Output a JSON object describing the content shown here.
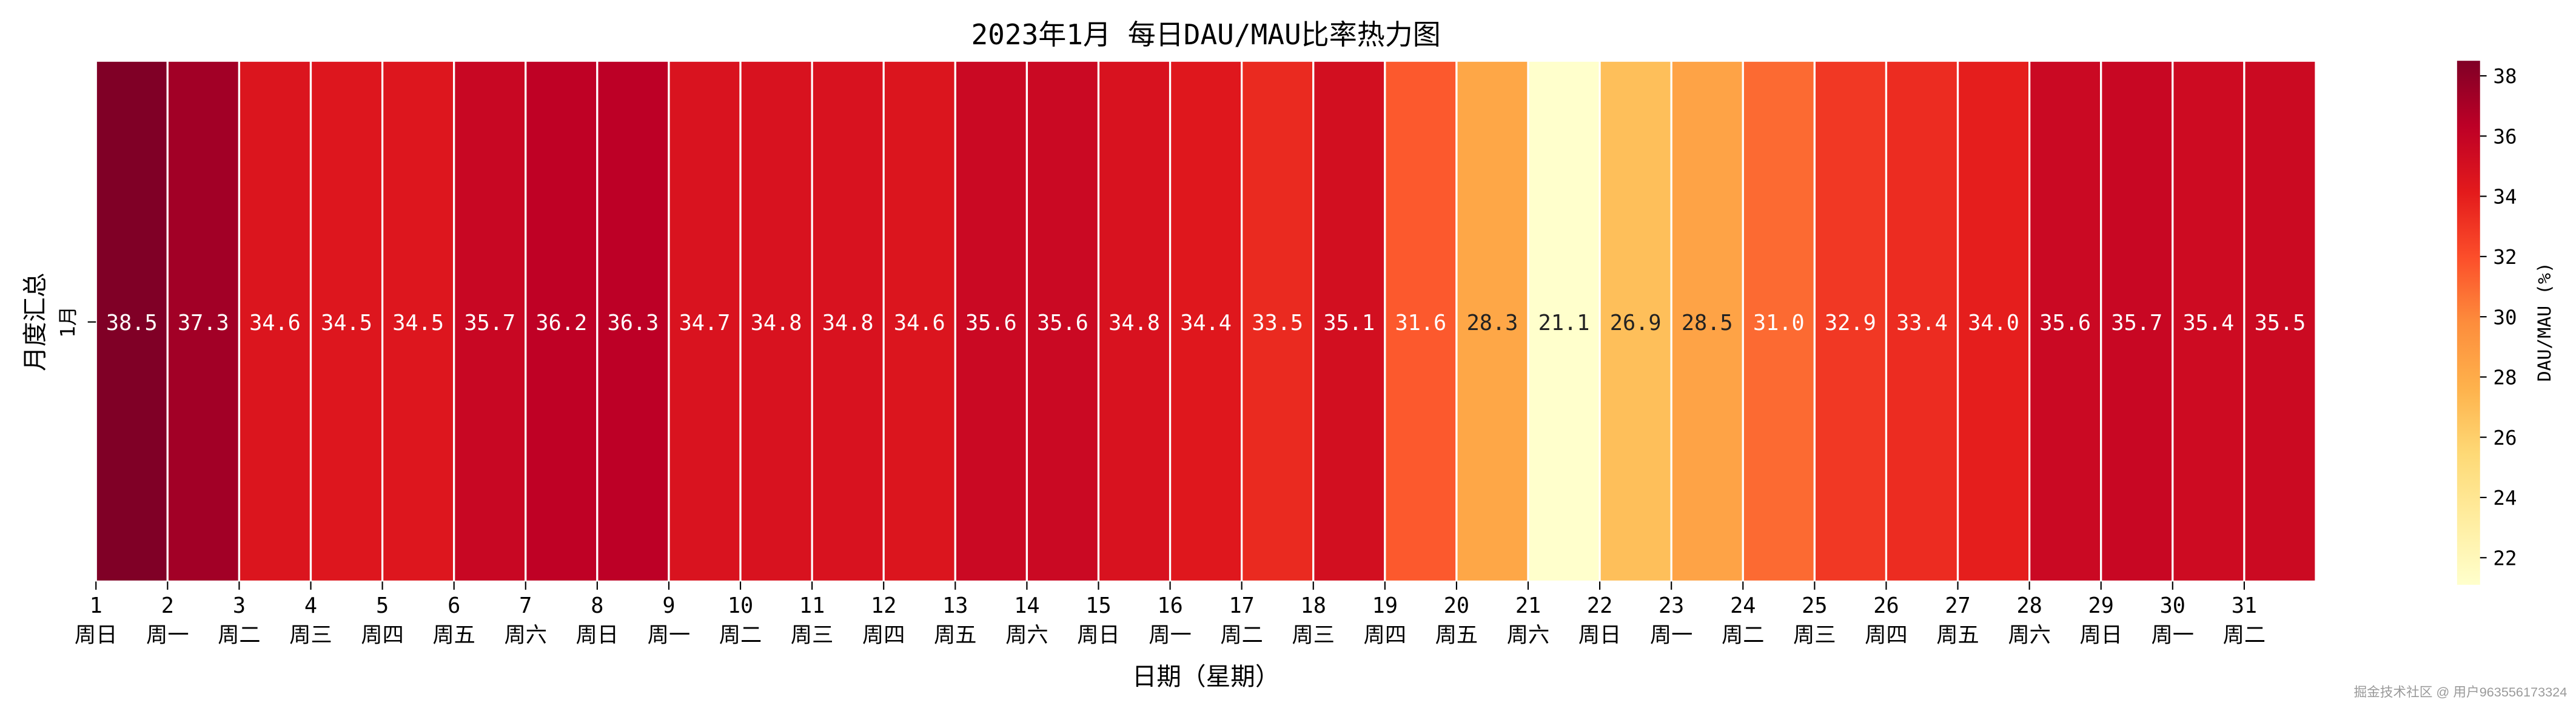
{
  "chart_data": {
    "type": "heatmap",
    "title": "2023年1月 每日DAU/MAU比率热力图",
    "xlabel": "日期（星期）",
    "ylabel": "月度汇总",
    "row_labels": [
      "1月"
    ],
    "x_tick_days": [
      "1",
      "2",
      "3",
      "4",
      "5",
      "6",
      "7",
      "8",
      "9",
      "10",
      "11",
      "12",
      "13",
      "14",
      "15",
      "16",
      "17",
      "18",
      "19",
      "20",
      "21",
      "22",
      "23",
      "24",
      "25",
      "26",
      "27",
      "28",
      "29",
      "30",
      "31"
    ],
    "x_tick_weekdays": [
      "周日",
      "周一",
      "周二",
      "周三",
      "周四",
      "周五",
      "周六",
      "周日",
      "周一",
      "周二",
      "周三",
      "周四",
      "周五",
      "周六",
      "周日",
      "周一",
      "周二",
      "周三",
      "周四",
      "周五",
      "周六",
      "周日",
      "周一",
      "周二",
      "周三",
      "周四",
      "周五",
      "周六",
      "周日",
      "周一",
      "周二"
    ],
    "values": [
      38.5,
      37.3,
      34.6,
      34.5,
      34.5,
      35.7,
      36.2,
      36.3,
      34.7,
      34.8,
      34.8,
      34.6,
      35.6,
      35.6,
      34.8,
      34.4,
      33.5,
      35.1,
      31.6,
      28.3,
      21.1,
      26.9,
      28.5,
      31.0,
      32.9,
      33.4,
      34.0,
      35.6,
      35.7,
      35.4,
      35.5
    ],
    "colormap": "YlOrRd",
    "colormap_stops": [
      "#ffffcc",
      "#ffeda0",
      "#fed976",
      "#feb24c",
      "#fd8d3c",
      "#fc4e2a",
      "#e31a1c",
      "#bd0026",
      "#800026"
    ],
    "color_range": [
      21.1,
      38.5
    ],
    "colorbar": {
      "label": "DAU/MAU (%)",
      "ticks": [
        "22",
        "24",
        "26",
        "28",
        "30",
        "32",
        "34",
        "36",
        "38"
      ],
      "position": "right"
    },
    "annotations": true,
    "grid": false
  },
  "watermark": "掘金技术社区 @ 用户963556173324"
}
